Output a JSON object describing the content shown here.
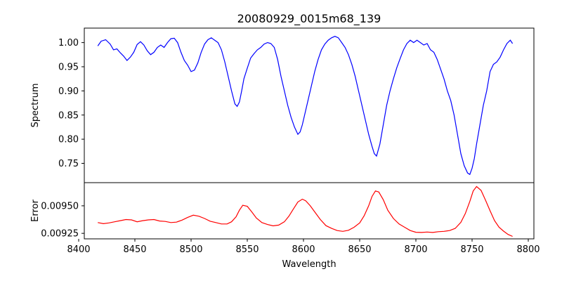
{
  "chart_data": [
    {
      "type": "line",
      "title": "20080929_0015m68_139",
      "xlabel": "",
      "ylabel": "Spectrum",
      "xlim": [
        8405,
        8805
      ],
      "ylim": [
        0.71,
        1.03
      ],
      "xticks": [
        8400,
        8450,
        8500,
        8550,
        8600,
        8650,
        8700,
        8750,
        8800
      ],
      "yticks": [
        0.75,
        0.8,
        0.85,
        0.9,
        0.95,
        1.0
      ],
      "ytick_labels": [
        "0.75",
        "0.80",
        "0.85",
        "0.90",
        "0.95",
        "1.00"
      ],
      "series": [
        {
          "name": "spectrum",
          "color": "#0000ff",
          "x": [
            8417,
            8420,
            8424,
            8428,
            8431,
            8434,
            8437,
            8440,
            8443,
            8446,
            8449,
            8452,
            8455,
            8458,
            8461,
            8464,
            8467,
            8470,
            8473,
            8476,
            8479,
            8482,
            8485,
            8488,
            8491,
            8494,
            8497,
            8500,
            8503,
            8506,
            8509,
            8512,
            8515,
            8518,
            8521,
            8524,
            8527,
            8530,
            8533,
            8536,
            8539,
            8541,
            8543,
            8545,
            8547,
            8550,
            8553,
            8556,
            8559,
            8562,
            8565,
            8568,
            8571,
            8574,
            8577,
            8580,
            8583,
            8586,
            8589,
            8592,
            8595,
            8597,
            8599,
            8601,
            8604,
            8607,
            8610,
            8613,
            8616,
            8619,
            8622,
            8625,
            8628,
            8631,
            8634,
            8637,
            8640,
            8643,
            8646,
            8649,
            8652,
            8655,
            8658,
            8661,
            8663,
            8665,
            8668,
            8671,
            8674,
            8677,
            8680,
            8683,
            8686,
            8689,
            8692,
            8695,
            8698,
            8701,
            8704,
            8707,
            8710,
            8713,
            8716,
            8719,
            8722,
            8725,
            8728,
            8731,
            8734,
            8737,
            8740,
            8743,
            8746,
            8748,
            8750,
            8752,
            8754,
            8757,
            8760,
            8763,
            8766,
            8769,
            8772,
            8775,
            8778,
            8781,
            8784,
            8786
          ],
          "y": [
            0.993,
            1.003,
            1.006,
            0.997,
            0.985,
            0.987,
            0.979,
            0.972,
            0.963,
            0.97,
            0.98,
            0.996,
            1.002,
            0.995,
            0.983,
            0.975,
            0.98,
            0.99,
            0.995,
            0.99,
            1.0,
            1.008,
            1.009,
            1.0,
            0.98,
            0.963,
            0.953,
            0.94,
            0.943,
            0.958,
            0.98,
            0.997,
            1.006,
            1.01,
            1.005,
            1.0,
            0.985,
            0.96,
            0.93,
            0.9,
            0.873,
            0.868,
            0.877,
            0.9,
            0.925,
            0.947,
            0.968,
            0.977,
            0.985,
            0.99,
            0.997,
            1.0,
            0.998,
            0.99,
            0.965,
            0.93,
            0.9,
            0.87,
            0.845,
            0.825,
            0.81,
            0.815,
            0.83,
            0.85,
            0.88,
            0.91,
            0.94,
            0.965,
            0.985,
            0.997,
            1.005,
            1.01,
            1.013,
            1.01,
            1.0,
            0.99,
            0.975,
            0.955,
            0.93,
            0.9,
            0.87,
            0.84,
            0.81,
            0.785,
            0.77,
            0.765,
            0.79,
            0.83,
            0.87,
            0.9,
            0.925,
            0.948,
            0.967,
            0.985,
            0.998,
            1.005,
            1.0,
            1.005,
            1.0,
            0.995,
            0.998,
            0.985,
            0.98,
            0.965,
            0.945,
            0.925,
            0.9,
            0.88,
            0.85,
            0.81,
            0.77,
            0.745,
            0.73,
            0.727,
            0.74,
            0.76,
            0.79,
            0.83,
            0.87,
            0.9,
            0.94,
            0.955,
            0.96,
            0.97,
            0.985,
            0.998,
            1.005,
            0.998
          ]
        }
      ]
    },
    {
      "type": "line",
      "title": "",
      "xlabel": "Wavelength",
      "ylabel": "Error",
      "xlim": [
        8405,
        8805
      ],
      "ylim": [
        0.0092,
        0.00971
      ],
      "xticks": [
        8400,
        8450,
        8500,
        8550,
        8600,
        8650,
        8700,
        8750,
        8800
      ],
      "xtick_labels": [
        "8400",
        "8450",
        "8500",
        "8550",
        "8600",
        "8650",
        "8700",
        "8750",
        "8800"
      ],
      "yticks": [
        0.00925,
        0.0095
      ],
      "ytick_labels": [
        "0.00925",
        "0.00950"
      ],
      "series": [
        {
          "name": "error",
          "color": "#ff0000",
          "x": [
            8417,
            8422,
            8427,
            8432,
            8437,
            8442,
            8447,
            8452,
            8457,
            8462,
            8467,
            8472,
            8477,
            8482,
            8487,
            8492,
            8497,
            8502,
            8507,
            8512,
            8517,
            8522,
            8527,
            8532,
            8536,
            8540,
            8543,
            8546,
            8550,
            8554,
            8558,
            8563,
            8568,
            8573,
            8578,
            8583,
            8587,
            8591,
            8595,
            8599,
            8602,
            8606,
            8610,
            8615,
            8620,
            8625,
            8630,
            8635,
            8640,
            8645,
            8650,
            8654,
            8658,
            8661,
            8664,
            8667,
            8671,
            8675,
            8680,
            8685,
            8690,
            8695,
            8700,
            8705,
            8710,
            8715,
            8720,
            8725,
            8730,
            8735,
            8740,
            8744,
            8748,
            8751,
            8754,
            8758,
            8762,
            8766,
            8770,
            8774,
            8778,
            8782,
            8786
          ],
          "y": [
            0.009348,
            0.009338,
            0.009345,
            0.009355,
            0.009365,
            0.009375,
            0.009372,
            0.009355,
            0.009365,
            0.009372,
            0.009375,
            0.009362,
            0.009358,
            0.009348,
            0.009352,
            0.00937,
            0.009395,
            0.009415,
            0.009405,
            0.009385,
            0.00936,
            0.009348,
            0.009335,
            0.009335,
            0.009355,
            0.0094,
            0.00946,
            0.009505,
            0.009495,
            0.009445,
            0.00939,
            0.009348,
            0.00933,
            0.009318,
            0.009325,
            0.009355,
            0.009405,
            0.00947,
            0.009535,
            0.00956,
            0.009545,
            0.0095,
            0.009445,
            0.009375,
            0.00932,
            0.009295,
            0.009275,
            0.009268,
            0.009278,
            0.009305,
            0.009345,
            0.00941,
            0.0095,
            0.009585,
            0.009635,
            0.009625,
            0.009555,
            0.00946,
            0.009385,
            0.009335,
            0.009305,
            0.009275,
            0.00926,
            0.009258,
            0.009262,
            0.009258,
            0.009265,
            0.009268,
            0.009275,
            0.009295,
            0.00935,
            0.00943,
            0.00954,
            0.009635,
            0.009675,
            0.00964,
            0.00955,
            0.009455,
            0.009365,
            0.009305,
            0.00927,
            0.00924,
            0.009222
          ]
        }
      ]
    }
  ]
}
